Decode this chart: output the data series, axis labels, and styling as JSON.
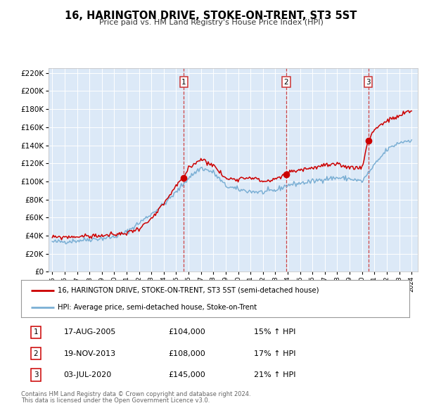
{
  "title": "16, HARINGTON DRIVE, STOKE-ON-TRENT, ST3 5ST",
  "subtitle": "Price paid vs. HM Land Registry's House Price Index (HPI)",
  "background_color": "#ffffff",
  "plot_bg_color": "#dce9f7",
  "grid_color": "#ffffff",
  "red_line_color": "#cc0000",
  "blue_line_color": "#7bafd4",
  "sale_marker_color": "#cc0000",
  "dashed_line_color": "#cc3333",
  "legend_label_red": "16, HARINGTON DRIVE, STOKE-ON-TRENT, ST3 5ST (semi-detached house)",
  "legend_label_blue": "HPI: Average price, semi-detached house, Stoke-on-Trent",
  "sale_years": [
    2005.625,
    2013.875,
    2020.5
  ],
  "sale_prices": [
    104000,
    108000,
    145000
  ],
  "sale_nums": [
    1,
    2,
    3
  ],
  "sale_display": [
    {
      "num": 1,
      "date_str": "17-AUG-2005",
      "price_str": "£104,000",
      "pct_str": "15% ↑ HPI"
    },
    {
      "num": 2,
      "date_str": "19-NOV-2013",
      "price_str": "£108,000",
      "pct_str": "17% ↑ HPI"
    },
    {
      "num": 3,
      "date_str": "03-JUL-2020",
      "price_str": "£145,000",
      "pct_str": "21% ↑ HPI"
    }
  ],
  "footer_line1": "Contains HM Land Registry data © Crown copyright and database right 2024.",
  "footer_line2": "This data is licensed under the Open Government Licence v3.0.",
  "xmin": 1995,
  "xmax": 2024,
  "ymin": 0,
  "ymax": 220000,
  "ytick_step": 20000,
  "hpi_anchors_x": [
    1995.0,
    1996.0,
    1997.0,
    1998.0,
    1999.0,
    2000.0,
    2001.0,
    2002.0,
    2003.0,
    2004.0,
    2005.0,
    2006.0,
    2007.0,
    2008.0,
    2009.0,
    2010.0,
    2011.0,
    2012.0,
    2013.0,
    2014.0,
    2015.0,
    2016.0,
    2017.0,
    2018.0,
    2019.0,
    2020.0,
    2021.0,
    2022.0,
    2023.0,
    2024.0
  ],
  "hpi_anchors_y": [
    33000,
    33500,
    34500,
    36000,
    37000,
    38500,
    44000,
    54000,
    64000,
    75000,
    88000,
    104000,
    115000,
    110000,
    95000,
    91000,
    89000,
    88000,
    90000,
    96000,
    98000,
    100000,
    103000,
    104000,
    103000,
    100000,
    118000,
    135000,
    143000,
    146000
  ],
  "prop_anchors_x": [
    1995.0,
    1996.0,
    1997.0,
    1998.0,
    1999.0,
    2000.0,
    2001.0,
    2002.0,
    2003.0,
    2004.0,
    2005.0,
    2005.625,
    2006.0,
    2007.0,
    2008.0,
    2009.0,
    2010.0,
    2011.0,
    2012.0,
    2013.0,
    2013.875,
    2014.0,
    2015.0,
    2016.0,
    2017.0,
    2018.0,
    2019.0,
    2019.5,
    2020.0,
    2020.5,
    2021.0,
    2022.0,
    2023.0,
    2023.5,
    2024.0
  ],
  "prop_anchors_y": [
    38000,
    38500,
    39000,
    39500,
    40000,
    41000,
    43000,
    48000,
    58000,
    75000,
    95000,
    104000,
    115000,
    125000,
    118000,
    103000,
    103000,
    105000,
    100000,
    102000,
    108000,
    110000,
    113000,
    115000,
    118000,
    118000,
    116000,
    115000,
    116000,
    145000,
    158000,
    167000,
    172000,
    176000,
    178000
  ]
}
